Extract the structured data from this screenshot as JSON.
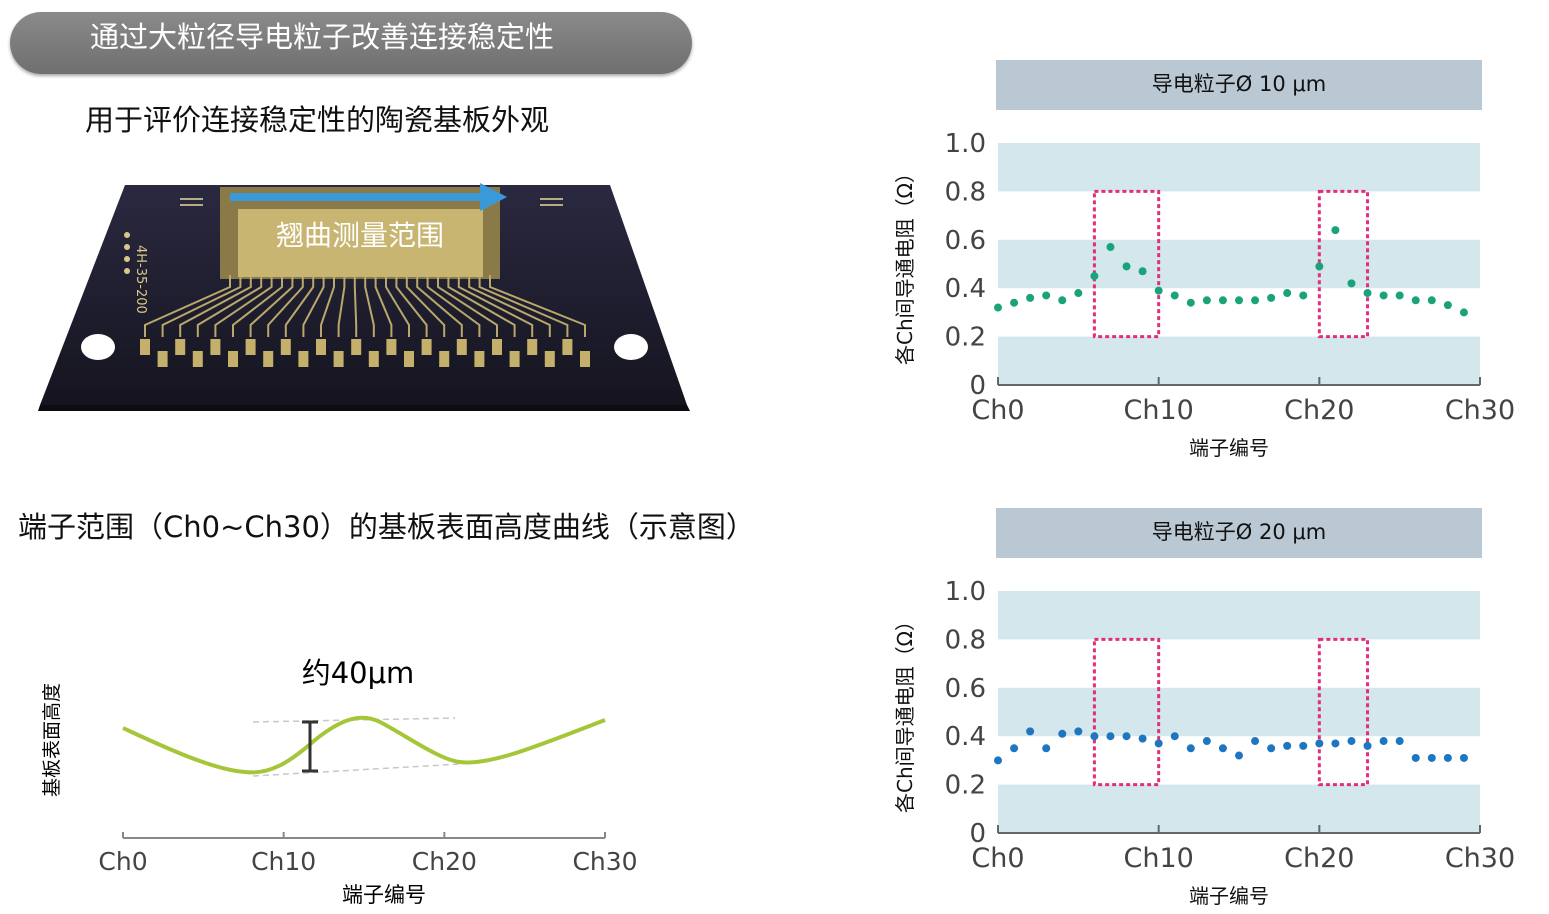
{
  "banner": {
    "title": "通过大粒径导电粒子改善连接稳定性"
  },
  "substrate": {
    "caption": "用于评价连接稳定性的陶瓷基板外观",
    "warp_range_label": "翘曲测量范围",
    "side_mark": "4H-35-200"
  },
  "profile": {
    "caption": "端子范围（Ch0~Ch30）的基板表面高度曲线（示意图）",
    "amplitude_label": "约40μm",
    "ylabel": "基板表面高度",
    "xlabel": "端子编号",
    "x_ticks": [
      "Ch0",
      "Ch10",
      "Ch20",
      "Ch30"
    ],
    "line_color": "#a6c639"
  },
  "chart_data": [
    {
      "type": "scatter",
      "title": "导电粒子Ø 10 μm",
      "xlabel": "端子编号",
      "ylabel": "各Ch间导通电阻（Ω）",
      "x_ticks": [
        "Ch0",
        "Ch10",
        "Ch20",
        "Ch30"
      ],
      "y_ticks": [
        "0",
        "0.2",
        "0.4",
        "0.6",
        "0.8",
        "1.0"
      ],
      "xlim": [
        0,
        30
      ],
      "ylim": [
        0,
        1.0
      ],
      "point_color": "#1aa37a",
      "highlight_color": "#e0307a",
      "highlight_ranges": [
        [
          6,
          10
        ],
        [
          20,
          23
        ]
      ],
      "x": [
        0,
        1,
        2,
        3,
        4,
        5,
        6,
        7,
        8,
        9,
        10,
        11,
        12,
        13,
        14,
        15,
        16,
        17,
        18,
        19,
        20,
        21,
        22,
        23,
        24,
        25,
        26,
        27,
        28,
        29,
        30
      ],
      "values": [
        0.32,
        0.34,
        0.36,
        0.37,
        0.35,
        0.38,
        0.45,
        0.57,
        0.49,
        0.47,
        0.39,
        0.37,
        0.34,
        0.35,
        0.35,
        0.35,
        0.35,
        0.36,
        0.38,
        0.37,
        0.49,
        0.64,
        0.42,
        0.38,
        0.37,
        0.37,
        0.35,
        0.35,
        0.33,
        0.3,
        null
      ]
    },
    {
      "type": "scatter",
      "title": "导电粒子Ø 20 μm",
      "xlabel": "端子编号",
      "ylabel": "各Ch间导通电阻（Ω）",
      "x_ticks": [
        "Ch0",
        "Ch10",
        "Ch20",
        "Ch30"
      ],
      "y_ticks": [
        "0",
        "0.2",
        "0.4",
        "0.6",
        "0.8",
        "1.0"
      ],
      "xlim": [
        0,
        30
      ],
      "ylim": [
        0,
        1.0
      ],
      "point_color": "#1f76c0",
      "highlight_color": "#e0307a",
      "highlight_ranges": [
        [
          6,
          10
        ],
        [
          20,
          23
        ]
      ],
      "x": [
        0,
        1,
        2,
        3,
        4,
        5,
        6,
        7,
        8,
        9,
        10,
        11,
        12,
        13,
        14,
        15,
        16,
        17,
        18,
        19,
        20,
        21,
        22,
        23,
        24,
        25,
        26,
        27,
        28,
        29,
        30
      ],
      "values": [
        0.3,
        0.35,
        0.42,
        0.35,
        0.41,
        0.42,
        0.4,
        0.4,
        0.4,
        0.39,
        0.37,
        0.4,
        0.35,
        0.38,
        0.35,
        0.32,
        0.38,
        0.35,
        0.36,
        0.36,
        0.37,
        0.37,
        0.38,
        0.36,
        0.38,
        0.38,
        0.31,
        0.31,
        0.31,
        0.31,
        null
      ]
    }
  ]
}
